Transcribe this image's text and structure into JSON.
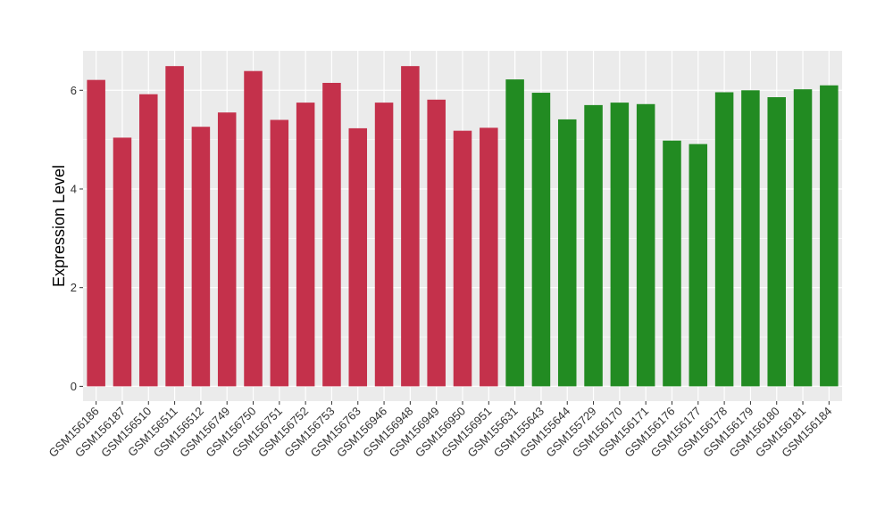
{
  "chart_data": {
    "type": "bar",
    "title": "",
    "xlabel": "",
    "ylabel": "Expression Level",
    "ylim": [
      -0.3,
      6.8
    ],
    "yticks": [
      0,
      2,
      4,
      6
    ],
    "grid": true,
    "legend": "none",
    "colors": {
      "group1": "#c4314b",
      "group2": "#228b22",
      "panel": "#ebebeb",
      "grid": "#ffffff"
    },
    "categories": [
      "GSM156186",
      "GSM156187",
      "GSM156510",
      "GSM156511",
      "GSM156512",
      "GSM156749",
      "GSM156750",
      "GSM156751",
      "GSM156752",
      "GSM156753",
      "GSM156763",
      "GSM156946",
      "GSM156948",
      "GSM156949",
      "GSM156950",
      "GSM156951",
      "GSM155631",
      "GSM155643",
      "GSM155644",
      "GSM155729",
      "GSM156170",
      "GSM156171",
      "GSM156176",
      "GSM156177",
      "GSM156178",
      "GSM156179",
      "GSM156180",
      "GSM156181",
      "GSM156184"
    ],
    "values": [
      6.21,
      5.04,
      5.92,
      6.49,
      5.26,
      5.55,
      6.39,
      5.4,
      5.75,
      6.15,
      5.23,
      5.75,
      6.49,
      5.81,
      5.18,
      5.24,
      6.22,
      5.95,
      5.41,
      5.7,
      5.75,
      5.72,
      4.98,
      4.91,
      5.96,
      6.0,
      5.86,
      6.02,
      6.1
    ],
    "groups": [
      1,
      1,
      1,
      1,
      1,
      1,
      1,
      1,
      1,
      1,
      1,
      1,
      1,
      1,
      1,
      1,
      2,
      2,
      2,
      2,
      2,
      2,
      2,
      2,
      2,
      2,
      2,
      2,
      2
    ]
  }
}
